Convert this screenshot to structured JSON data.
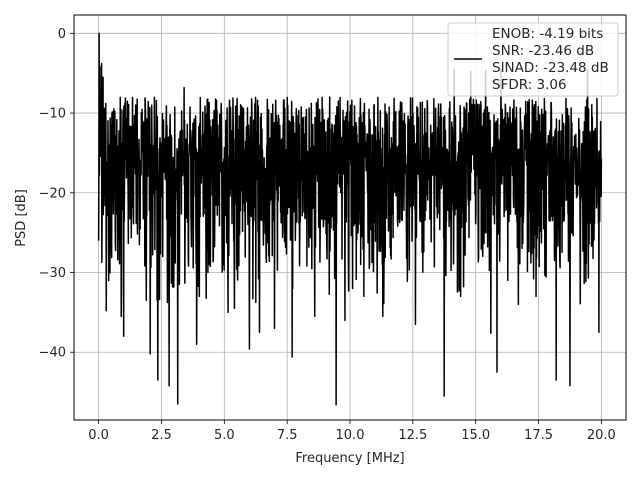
{
  "chart_data": {
    "type": "line",
    "title": "",
    "xlabel": "Frequency [MHz]",
    "ylabel": "PSD [dB]",
    "xlim": [
      -0.98,
      20.98
    ],
    "ylim": [
      -48.5,
      2.3
    ],
    "xticks": [
      0.0,
      2.5,
      5.0,
      7.5,
      10.0,
      12.5,
      15.0,
      17.5,
      20.0
    ],
    "xtick_labels": [
      "0.0",
      "2.5",
      "5.0",
      "7.5",
      "10.0",
      "12.5",
      "15.0",
      "17.5",
      "20.0"
    ],
    "yticks": [
      0,
      -10,
      -20,
      -30,
      -40
    ],
    "ytick_labels": [
      "0",
      "−10",
      "−20",
      "−30",
      "−40"
    ],
    "grid": true,
    "legend_position": "top-right",
    "series": [
      {
        "color": "#000000",
        "x_range": [
          0,
          20
        ],
        "n_points": 2048,
        "baseline_db": -13.5,
        "noise_floor_range_db": [
          -26,
          -8
        ],
        "values": [],
        "peaks": [
          {
            "x": 0.02,
            "y": 0.0
          },
          {
            "x": 0.05,
            "y": -4.2
          },
          {
            "x": 0.12,
            "y": -3.8
          }
        ],
        "dips": [
          {
            "x": 0.3,
            "y": -34.8
          },
          {
            "x": 0.9,
            "y": -35.5
          },
          {
            "x": 1.0,
            "y": -38.0
          },
          {
            "x": 1.9,
            "y": -33.5
          },
          {
            "x": 2.05,
            "y": -40.2
          },
          {
            "x": 2.35,
            "y": -43.5
          },
          {
            "x": 2.8,
            "y": -44.2
          },
          {
            "x": 3.15,
            "y": -46.5
          },
          {
            "x": 3.9,
            "y": -39.0
          },
          {
            "x": 5.15,
            "y": -35.0
          },
          {
            "x": 5.4,
            "y": -34.5
          },
          {
            "x": 6.0,
            "y": -39.6
          },
          {
            "x": 6.4,
            "y": -37.5
          },
          {
            "x": 7.0,
            "y": -37.0
          },
          {
            "x": 7.7,
            "y": -40.6
          },
          {
            "x": 8.6,
            "y": -35.5
          },
          {
            "x": 9.45,
            "y": -46.6
          },
          {
            "x": 9.8,
            "y": -36.0
          },
          {
            "x": 10.1,
            "y": -32.0
          },
          {
            "x": 10.55,
            "y": -33.0
          },
          {
            "x": 11.3,
            "y": -35.5
          },
          {
            "x": 12.6,
            "y": -36.5
          },
          {
            "x": 13.75,
            "y": -45.5
          },
          {
            "x": 14.4,
            "y": -33.0
          },
          {
            "x": 15.6,
            "y": -37.6
          },
          {
            "x": 15.85,
            "y": -42.5
          },
          {
            "x": 16.7,
            "y": -34.0
          },
          {
            "x": 17.4,
            "y": -33.0
          },
          {
            "x": 18.2,
            "y": -43.5
          },
          {
            "x": 18.75,
            "y": -44.2
          },
          {
            "x": 19.45,
            "y": -39.0
          },
          {
            "x": 19.9,
            "y": -37.5
          }
        ],
        "highs": [
          {
            "x": 0.18,
            "y": -5.5
          },
          {
            "x": 14.15,
            "y": -4.5
          },
          {
            "x": 14.8,
            "y": -4.8
          },
          {
            "x": 15.4,
            "y": -4.7
          },
          {
            "x": 16.0,
            "y": -4.5
          },
          {
            "x": 19.45,
            "y": -4.5
          },
          {
            "x": 3.4,
            "y": -6.8
          }
        ]
      }
    ],
    "legend": {
      "lines": [
        "ENOB: -4.19 bits",
        "SNR: -23.46 dB",
        "SINAD: -23.48 dB",
        "SFDR: 3.06"
      ]
    }
  }
}
